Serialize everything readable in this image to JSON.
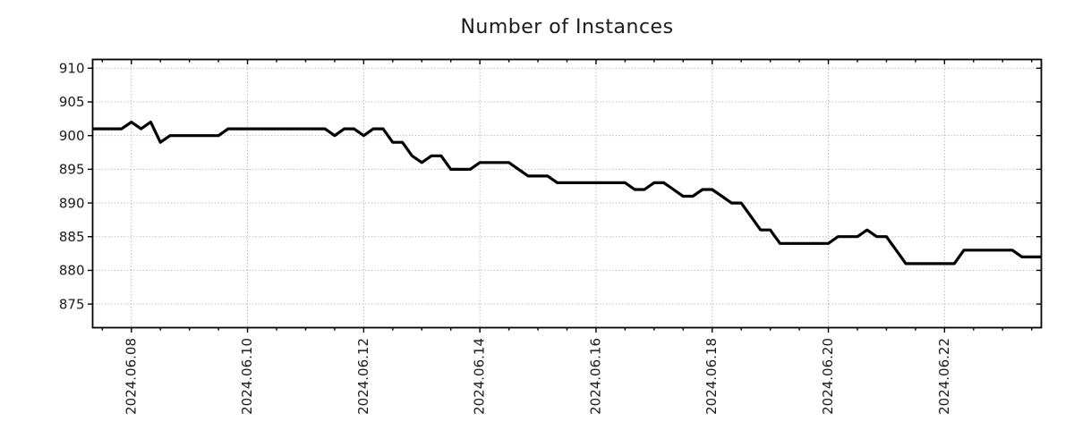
{
  "chart": {
    "title": "Number of Instances"
  },
  "chart_data": {
    "type": "line",
    "title": "Number of Instances",
    "series_name": "number-of-instances",
    "line_color": "#000000",
    "grid_color": "#b0b0b0",
    "spine_color": "#000000",
    "text_color": "#1a1a1a",
    "background": "#ffffff",
    "grid": true,
    "legend_position": "none",
    "ylim": [
      871.5,
      911.3
    ],
    "yticks": [
      875,
      880,
      885,
      890,
      895,
      900,
      905,
      910
    ],
    "xtick_labels": [
      "2024.06.08",
      "2024.06.10",
      "2024.06.12",
      "2024.06.14",
      "2024.06.16",
      "2024.06.18",
      "2024.06.20",
      "2024.06.22"
    ],
    "x_minor_tick_hours": 12,
    "x": [
      "2024.06.07 08:00",
      "2024.06.07 12:00",
      "2024.06.07 16:00",
      "2024.06.07 20:00",
      "2024.06.08 00:00",
      "2024.06.08 04:00",
      "2024.06.08 08:00",
      "2024.06.08 12:00",
      "2024.06.08 16:00",
      "2024.06.08 20:00",
      "2024.06.09 00:00",
      "2024.06.09 04:00",
      "2024.06.09 08:00",
      "2024.06.09 12:00",
      "2024.06.09 16:00",
      "2024.06.09 20:00",
      "2024.06.10 00:00",
      "2024.06.10 04:00",
      "2024.06.10 08:00",
      "2024.06.10 12:00",
      "2024.06.10 16:00",
      "2024.06.10 20:00",
      "2024.06.11 00:00",
      "2024.06.11 04:00",
      "2024.06.11 08:00",
      "2024.06.11 12:00",
      "2024.06.11 16:00",
      "2024.06.11 20:00",
      "2024.06.12 00:00",
      "2024.06.12 04:00",
      "2024.06.12 08:00",
      "2024.06.12 12:00",
      "2024.06.12 16:00",
      "2024.06.12 20:00",
      "2024.06.13 00:00",
      "2024.06.13 04:00",
      "2024.06.13 08:00",
      "2024.06.13 12:00",
      "2024.06.13 16:00",
      "2024.06.13 20:00",
      "2024.06.14 00:00",
      "2024.06.14 04:00",
      "2024.06.14 08:00",
      "2024.06.14 12:00",
      "2024.06.14 16:00",
      "2024.06.14 20:00",
      "2024.06.15 00:00",
      "2024.06.15 04:00",
      "2024.06.15 08:00",
      "2024.06.15 12:00",
      "2024.06.15 16:00",
      "2024.06.15 20:00",
      "2024.06.16 00:00",
      "2024.06.16 04:00",
      "2024.06.16 08:00",
      "2024.06.16 12:00",
      "2024.06.16 16:00",
      "2024.06.16 20:00",
      "2024.06.17 00:00",
      "2024.06.17 04:00",
      "2024.06.17 08:00",
      "2024.06.17 12:00",
      "2024.06.17 16:00",
      "2024.06.17 20:00",
      "2024.06.18 00:00",
      "2024.06.18 04:00",
      "2024.06.18 08:00",
      "2024.06.18 12:00",
      "2024.06.18 16:00",
      "2024.06.18 20:00",
      "2024.06.19 00:00",
      "2024.06.19 04:00",
      "2024.06.19 08:00",
      "2024.06.19 12:00",
      "2024.06.19 16:00",
      "2024.06.19 20:00",
      "2024.06.20 00:00",
      "2024.06.20 04:00",
      "2024.06.20 08:00",
      "2024.06.20 12:00",
      "2024.06.20 16:00",
      "2024.06.20 20:00",
      "2024.06.21 00:00",
      "2024.06.21 04:00",
      "2024.06.21 08:00",
      "2024.06.21 12:00",
      "2024.06.21 16:00",
      "2024.06.21 20:00",
      "2024.06.22 00:00",
      "2024.06.22 04:00",
      "2024.06.22 08:00",
      "2024.06.22 12:00",
      "2024.06.22 16:00",
      "2024.06.22 20:00",
      "2024.06.23 00:00",
      "2024.06.23 04:00",
      "2024.06.23 08:00",
      "2024.06.23 12:00",
      "2024.06.23 16:00"
    ],
    "values": [
      901,
      901,
      901,
      901,
      902,
      901,
      902,
      899,
      900,
      900,
      900,
      900,
      900,
      900,
      901,
      901,
      901,
      901,
      901,
      901,
      901,
      901,
      901,
      901,
      901,
      900,
      901,
      901,
      900,
      901,
      901,
      899,
      899,
      897,
      896,
      897,
      897,
      895,
      895,
      895,
      896,
      896,
      896,
      896,
      895,
      894,
      894,
      894,
      893,
      893,
      893,
      893,
      893,
      893,
      893,
      893,
      892,
      892,
      893,
      893,
      892,
      891,
      891,
      892,
      892,
      891,
      890,
      890,
      888,
      886,
      886,
      884,
      884,
      884,
      884,
      884,
      884,
      885,
      885,
      885,
      886,
      885,
      885,
      883,
      881,
      881,
      881,
      881,
      881,
      881,
      883,
      883,
      883,
      883,
      883,
      883,
      882,
      882,
      882
    ]
  }
}
